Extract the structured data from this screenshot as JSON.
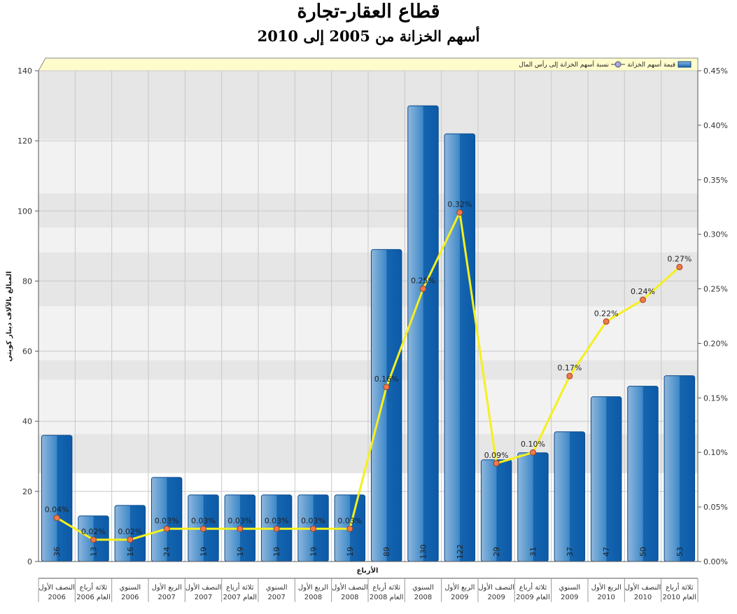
{
  "chart_data": {
    "type": "bar",
    "title": "قطاع العقار-تجارة",
    "subtitle": "أسهم الخزانة من 2005 إلى 2010",
    "xlabel": "الأرباع",
    "ylabel": "المبالغ بالآلاف دينار كويتي",
    "ylim": [
      0,
      140
    ],
    "y_ticks": [
      "0",
      "20",
      "40",
      "60",
      "80",
      "100",
      "120",
      "140"
    ],
    "y2lim": [
      0,
      0.45
    ],
    "y2_ticks": [
      "0.00%",
      "0.05%",
      "0.10%",
      "0.15%",
      "0.20%",
      "0.25%",
      "0.30%",
      "0.35%",
      "0.40%",
      "0.45%"
    ],
    "categories": [
      {
        "line1": "النصف الأول",
        "line2": "2006"
      },
      {
        "line1": "ثلاثة أرباع",
        "line2": "العام 2006"
      },
      {
        "line1": "السنوي",
        "line2": "2006"
      },
      {
        "line1": "الربع الأول",
        "line2": "2007"
      },
      {
        "line1": "النصف الأول",
        "line2": "2007"
      },
      {
        "line1": "ثلاثة أرباع",
        "line2": "العام 2007"
      },
      {
        "line1": "السنوي",
        "line2": "2007"
      },
      {
        "line1": "الربع الأول",
        "line2": "2008"
      },
      {
        "line1": "النصف الأول",
        "line2": "2008"
      },
      {
        "line1": "ثلاثة أرباع",
        "line2": "العام 2008"
      },
      {
        "line1": "السنوي",
        "line2": "2008"
      },
      {
        "line1": "الربع الأول",
        "line2": "2009"
      },
      {
        "line1": "النصف الأول",
        "line2": "2009"
      },
      {
        "line1": "ثلاثة أرباع",
        "line2": "العام 2009"
      },
      {
        "line1": "السنوي",
        "line2": "2009"
      },
      {
        "line1": "الربع الأول",
        "line2": "2010"
      },
      {
        "line1": "النصف الأول",
        "line2": "2010"
      },
      {
        "line1": "ثلاثة أرباع",
        "line2": "العام 2010"
      }
    ],
    "series": [
      {
        "name": "قيمة أسهم الخزانة",
        "type": "bar",
        "axis": "left",
        "values": [
          36,
          13,
          16,
          24,
          19,
          19,
          19,
          19,
          19,
          89,
          130,
          122,
          29,
          31,
          37,
          47,
          50,
          53
        ],
        "labels": [
          "36",
          "13",
          "16",
          "24",
          "19",
          "19",
          "19",
          "19",
          "19",
          "89",
          "130",
          "122",
          "29",
          "31",
          "37",
          "47",
          "50",
          "53"
        ],
        "color": "#1f74c2"
      },
      {
        "name": "نسبة أسهم الخزانة إلى رأس المال",
        "type": "line",
        "axis": "right",
        "values": [
          0.04,
          0.02,
          0.02,
          0.03,
          0.03,
          0.03,
          0.03,
          0.03,
          0.03,
          0.16,
          0.25,
          0.32,
          0.09,
          0.1,
          0.17,
          0.22,
          0.24,
          0.27
        ],
        "labels": [
          "0.04%",
          "0.02%",
          "0.02%",
          "0.03%",
          "0.03%",
          "0.03%",
          "0.03%",
          "0.03%",
          "0.03%",
          "0.16%",
          "0.25%",
          "0.32%",
          "0.09%",
          "0.10%",
          "0.17%",
          "0.22%",
          "0.24%",
          "0.27%"
        ],
        "color": "#f5f01e",
        "marker_color": "#f07a4a"
      }
    ],
    "legend_position": "top-right",
    "grid": true
  }
}
